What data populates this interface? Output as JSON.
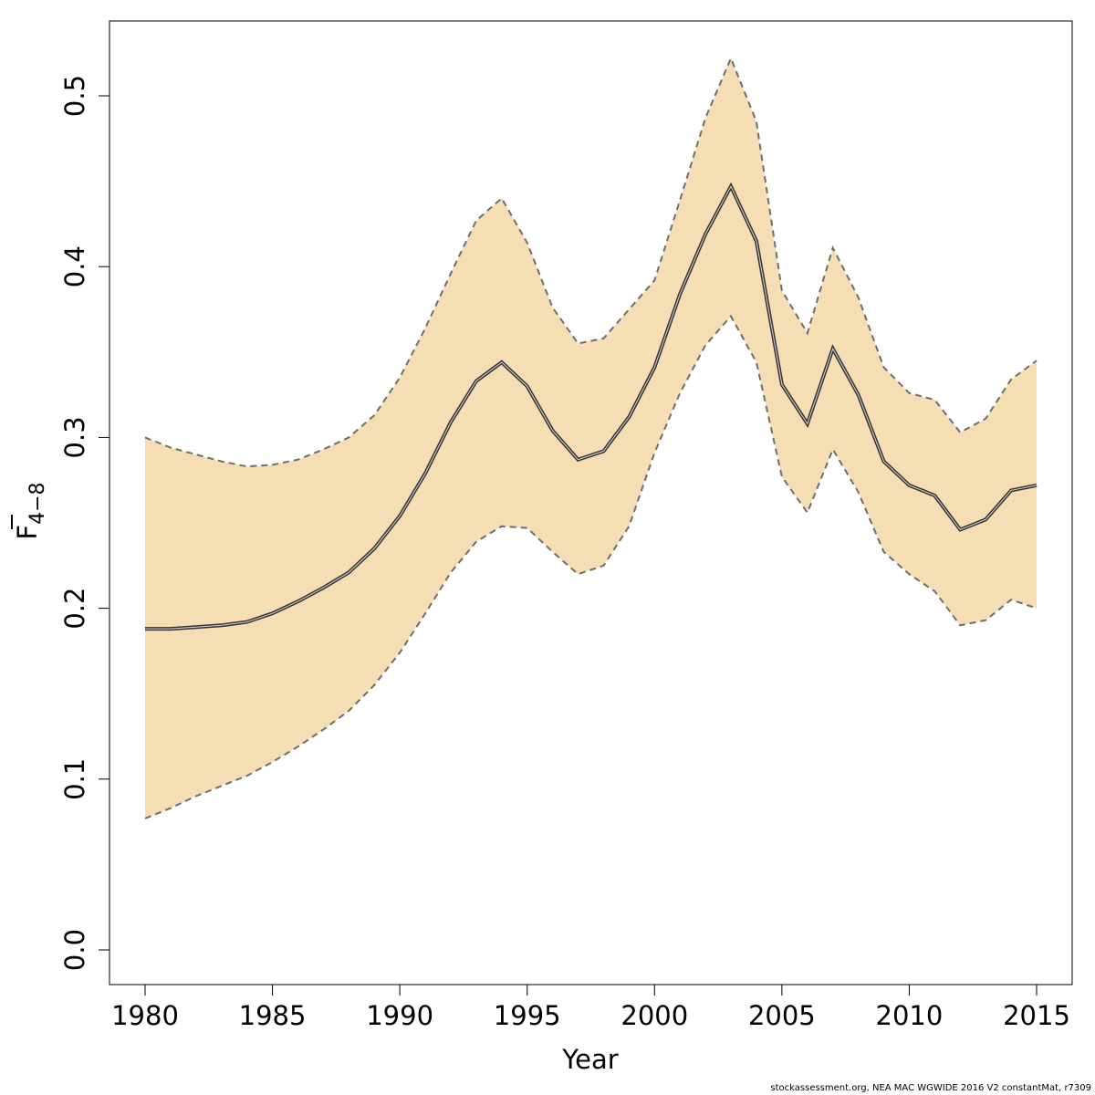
{
  "chart_data": {
    "type": "area",
    "xlabel": "Year",
    "ylabel": {
      "main": "F",
      "subscript": "4−8",
      "overline": true
    },
    "xlim": [
      1978.6,
      2016.4
    ],
    "ylim": [
      -0.021,
      0.545
    ],
    "xticks": [
      1980,
      1985,
      1990,
      1995,
      2000,
      2005,
      2010,
      2015
    ],
    "xtick_labels": [
      "1980",
      "1985",
      "1990",
      "1995",
      "2000",
      "2005",
      "2010",
      "2015"
    ],
    "yticks": [
      0.0,
      0.1,
      0.2,
      0.3,
      0.4,
      0.5
    ],
    "ytick_labels": [
      "0.0",
      "0.1",
      "0.2",
      "0.3",
      "0.4",
      "0.5"
    ],
    "grid": false,
    "colors": {
      "band": "#f5deb3",
      "line": "#333333",
      "bounds": "#6e6e6e"
    },
    "x": [
      1980,
      1981,
      1982,
      1983,
      1984,
      1985,
      1986,
      1987,
      1988,
      1989,
      1990,
      1991,
      1992,
      1993,
      1994,
      1995,
      1996,
      1997,
      1998,
      1999,
      2000,
      2001,
      2002,
      2003,
      2004,
      2005,
      2006,
      2007,
      2008,
      2009,
      2010,
      2011,
      2012,
      2013,
      2014,
      2015
    ],
    "series": [
      {
        "role": "estimate",
        "values": [
          0.188,
          0.188,
          0.189,
          0.19,
          0.192,
          0.197,
          0.204,
          0.212,
          0.221,
          0.235,
          0.254,
          0.279,
          0.309,
          0.333,
          0.344,
          0.33,
          0.304,
          0.287,
          0.292,
          0.312,
          0.341,
          0.384,
          0.419,
          0.447,
          0.415,
          0.331,
          0.308,
          0.352,
          0.325,
          0.286,
          0.272,
          0.266,
          0.246,
          0.252,
          0.269,
          0.272
        ]
      },
      {
        "role": "upper",
        "values": [
          0.3,
          0.294,
          0.29,
          0.286,
          0.283,
          0.284,
          0.287,
          0.293,
          0.3,
          0.313,
          0.335,
          0.364,
          0.396,
          0.427,
          0.44,
          0.414,
          0.376,
          0.355,
          0.358,
          0.375,
          0.392,
          0.439,
          0.487,
          0.522,
          0.485,
          0.386,
          0.361,
          0.411,
          0.382,
          0.341,
          0.326,
          0.322,
          0.303,
          0.311,
          0.334,
          0.345
        ]
      },
      {
        "role": "lower",
        "values": [
          0.077,
          0.083,
          0.09,
          0.096,
          0.102,
          0.11,
          0.119,
          0.129,
          0.14,
          0.155,
          0.174,
          0.197,
          0.221,
          0.239,
          0.248,
          0.247,
          0.233,
          0.22,
          0.225,
          0.248,
          0.291,
          0.326,
          0.354,
          0.371,
          0.344,
          0.277,
          0.256,
          0.293,
          0.268,
          0.233,
          0.22,
          0.21,
          0.19,
          0.193,
          0.205,
          0.2
        ]
      }
    ]
  },
  "footer": "stockassessment.org, NEA  MAC  WGWIDE  2016  V2  constantMat, r7309"
}
